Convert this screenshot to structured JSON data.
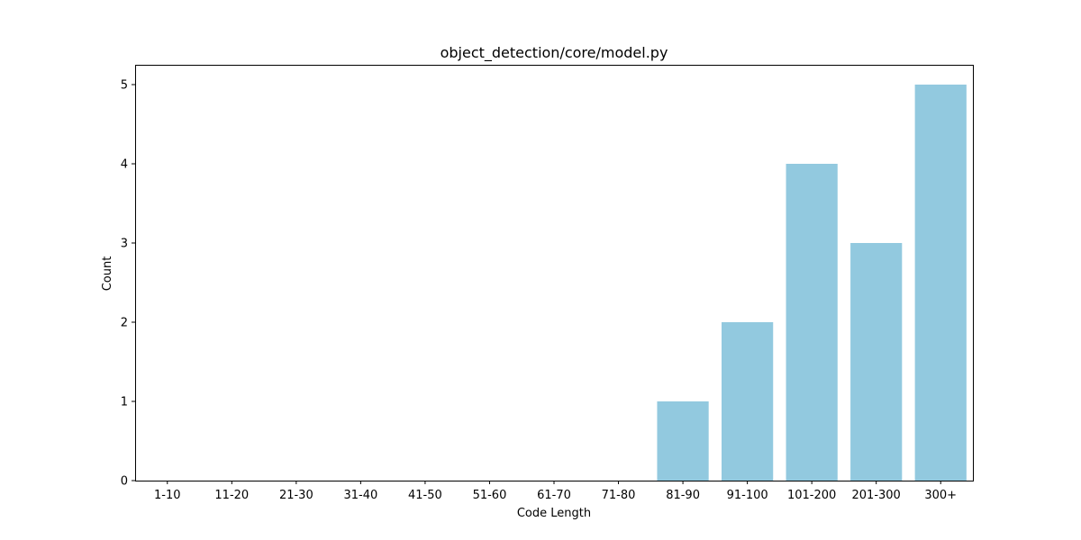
{
  "chart_data": {
    "type": "bar",
    "title": "object_detection/core/model.py",
    "xlabel": "Code Length",
    "ylabel": "Count",
    "categories": [
      "1-10",
      "11-20",
      "21-30",
      "31-40",
      "41-50",
      "51-60",
      "61-70",
      "71-80",
      "81-90",
      "91-100",
      "101-200",
      "201-300",
      "300+"
    ],
    "values": [
      0,
      0,
      0,
      0,
      0,
      0,
      0,
      0,
      1,
      2,
      4,
      3,
      5
    ],
    "ylim": [
      0,
      5.25
    ],
    "yticks": [
      "0",
      "1",
      "2",
      "3",
      "4",
      "5"
    ],
    "grid": false,
    "bar_color": "#92c9df"
  }
}
